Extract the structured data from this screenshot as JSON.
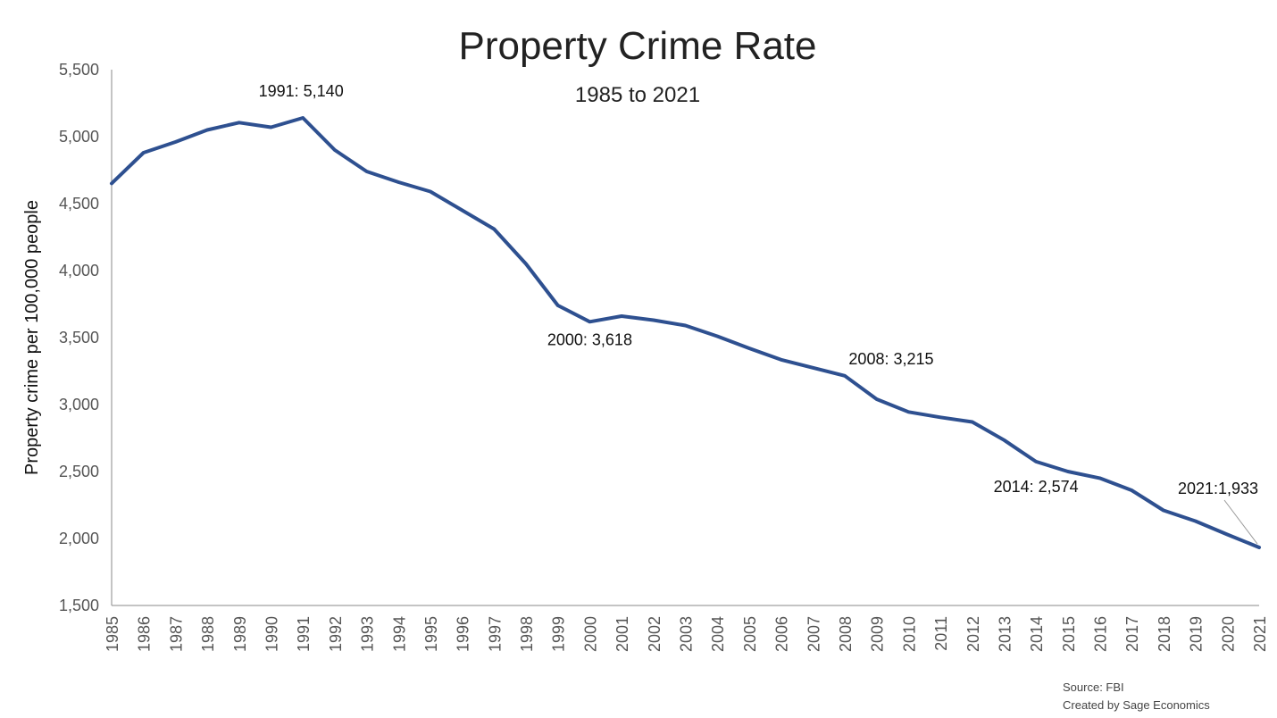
{
  "chart_data": {
    "type": "line",
    "title": "Property Crime Rate",
    "subtitle": "1985 to 2021",
    "xlabel": "",
    "ylabel": "Property crime per 100,000 people",
    "ylim": [
      1500,
      5500
    ],
    "yticks": [
      "1,500",
      "2,000",
      "2,500",
      "3,000",
      "3,500",
      "4,000",
      "4,500",
      "5,000",
      "5,500"
    ],
    "grid": false,
    "series_color": "#2E5090",
    "x": [
      "1985",
      "1986",
      "1987",
      "1988",
      "1989",
      "1990",
      "1991",
      "1992",
      "1993",
      "1994",
      "1995",
      "1996",
      "1997",
      "1998",
      "1999",
      "2000",
      "2001",
      "2002",
      "2003",
      "2004",
      "2005",
      "2006",
      "2007",
      "2008",
      "2009",
      "2010",
      "2011",
      "2012",
      "2013",
      "2014",
      "2015",
      "2016",
      "2017",
      "2018",
      "2019",
      "2020",
      "2021"
    ],
    "series": [
      {
        "values": [
          4651,
          4880,
          4960,
          5050,
          5105,
          5070,
          5140,
          4900,
          4740,
          4660,
          4590,
          4450,
          4310,
          4050,
          3740,
          3618,
          3660,
          3630,
          3590,
          3510,
          3420,
          3335,
          3275,
          3215,
          3040,
          2945,
          2905,
          2870,
          2735,
          2574,
          2500,
          2451,
          2360,
          2210,
          2130,
          2030,
          1933
        ]
      }
    ],
    "annotations": [
      {
        "text": "1991: 5,140",
        "year": "1991",
        "value": 5140
      },
      {
        "text": "2000: 3,618",
        "year": "2000",
        "value": 3618
      },
      {
        "text": "2008: 3,215",
        "year": "2008",
        "value": 3215
      },
      {
        "text": "2014: 2,574",
        "year": "2014",
        "value": 2574
      },
      {
        "text": "2021:1,933",
        "year": "2021",
        "value": 1933
      }
    ]
  },
  "footer": {
    "source": "Source: FBI",
    "credit": "Created by Sage Economics"
  }
}
